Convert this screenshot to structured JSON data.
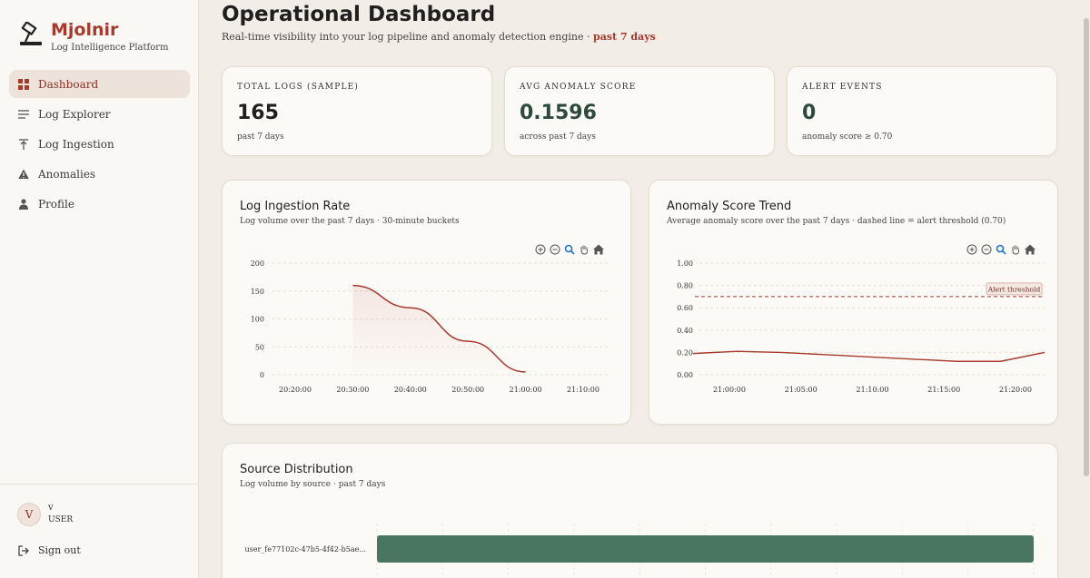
{
  "brand": {
    "name": "Mjolnir",
    "subtitle": "Log Intelligence Platform"
  },
  "nav": [
    {
      "label": "Dashboard",
      "icon": "grid-icon",
      "active": true
    },
    {
      "label": "Log Explorer",
      "icon": "list-icon"
    },
    {
      "label": "Log Ingestion",
      "icon": "upload-icon"
    },
    {
      "label": "Anomalies",
      "icon": "warning-icon"
    },
    {
      "label": "Profile",
      "icon": "user-icon"
    }
  ],
  "user": {
    "initial": "V",
    "name": "v",
    "role": "USER"
  },
  "signout": "Sign out",
  "page": {
    "title": "Operational Dashboard",
    "subtitle": "Real-time visibility into your log pipeline and anomaly detection engine ·",
    "range": "past 7 days"
  },
  "stats": [
    {
      "label": "TOTAL LOGS (SAMPLE)",
      "value": "165",
      "sub": "past 7 days"
    },
    {
      "label": "AVG ANOMALY SCORE",
      "value": "0.1596",
      "sub": "across past 7 days"
    },
    {
      "label": "ALERT EVENTS",
      "value": "0",
      "sub": "anomaly score ≥ 0.70"
    }
  ],
  "ingestion": {
    "title": "Log Ingestion Rate",
    "subtitle": "Log volume over the past 7 days · 30-minute buckets"
  },
  "anomaly": {
    "title": "Anomaly Score Trend",
    "subtitle": "Average anomaly score over the past 7 days · dashed line = alert threshold (0.70)",
    "threshold_label": "Alert threshold"
  },
  "source": {
    "title": "Source Distribution",
    "subtitle": "Log volume by source · past 7 days"
  },
  "colors": {
    "accent": "#a8392f",
    "green": "#4a7560",
    "line": "#a8392f"
  },
  "chart_data": [
    {
      "type": "area",
      "title": "Log Ingestion Rate",
      "x": [
        "20:30:00",
        "20:40:00",
        "20:50:00",
        "21:00:00"
      ],
      "x_ticks": [
        "20:20:00",
        "20:30:00",
        "20:40:00",
        "20:50:00",
        "21:00:00",
        "21:10:00"
      ],
      "y_ticks": [
        "200",
        "150",
        "100",
        "50",
        "0"
      ],
      "ylim": [
        0,
        200
      ],
      "series": [
        {
          "values": [
            160,
            120,
            60,
            5
          ]
        }
      ]
    },
    {
      "type": "line",
      "title": "Anomaly Score Trend",
      "x_ticks": [
        "21:00:00",
        "21:05:00",
        "21:10:00",
        "21:15:00",
        "21:20:00"
      ],
      "y_ticks": [
        "1.00",
        "0.80",
        "0.60",
        "0.40",
        "0.20",
        "0.00"
      ],
      "ylim": [
        0,
        1
      ],
      "threshold": 0.7,
      "series": [
        {
          "values": [
            0.19,
            0.21,
            0.2,
            0.18,
            0.16,
            0.14,
            0.12,
            0.12,
            0.2
          ]
        }
      ]
    },
    {
      "type": "bar",
      "title": "Source Distribution",
      "categories": [
        "user_fe77102c-47b5-4f42-b5ae..."
      ],
      "values": [
        165
      ]
    }
  ]
}
